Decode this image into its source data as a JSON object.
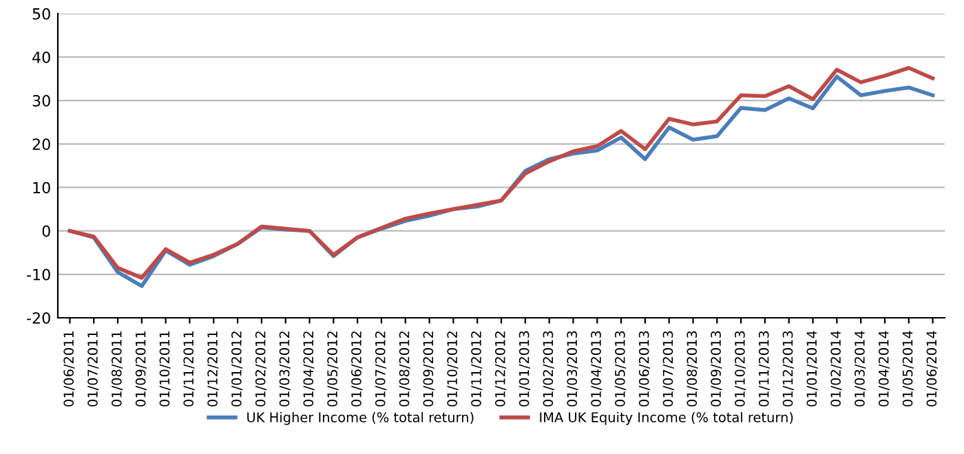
{
  "chart_data": {
    "type": "line",
    "categories": [
      "01/06/2011",
      "01/07/2011",
      "01/08/2011",
      "01/09/2011",
      "01/10/2011",
      "01/11/2011",
      "01/12/2011",
      "01/01/2012",
      "01/02/2012",
      "01/03/2012",
      "01/04/2012",
      "01/05/2012",
      "01/06/2012",
      "01/07/2012",
      "01/08/2012",
      "01/09/2012",
      "01/10/2012",
      "01/11/2012",
      "01/12/2012",
      "01/01/2013",
      "01/02/2013",
      "01/03/2013",
      "01/04/2013",
      "01/05/2013",
      "01/06/2013",
      "01/07/2013",
      "01/08/2013",
      "01/09/2013",
      "01/10/2013",
      "01/11/2013",
      "01/12/2013",
      "01/01/2014",
      "01/02/2014",
      "01/03/2014",
      "01/04/2014",
      "01/05/2014",
      "01/06/2014"
    ],
    "series": [
      {
        "name": "UK Higher Income (% total return)",
        "color": "#4a7ebb",
        "values": [
          0,
          -1.5,
          -9.5,
          -12.7,
          -4.5,
          -7.8,
          -5.8,
          -3,
          0.8,
          0.3,
          0,
          -5.8,
          -1.5,
          0.5,
          2.3,
          3.5,
          5,
          5.6,
          7,
          13.8,
          16.5,
          17.8,
          18.5,
          21.5,
          16.5,
          23.8,
          21,
          21.8,
          28.3,
          27.8,
          30.5,
          28.2,
          35.5,
          31.2,
          32.2,
          33,
          31.2
        ]
      },
      {
        "name": "IMA UK Equity Income (% total return)",
        "color": "#be4b48",
        "values": [
          0,
          -1.3,
          -8.5,
          -10.8,
          -4.2,
          -7.3,
          -5.5,
          -3,
          1,
          0.5,
          0,
          -5.5,
          -1.5,
          0.7,
          2.8,
          4,
          5,
          6,
          7,
          13.2,
          16,
          18.3,
          19.5,
          23,
          18.8,
          25.8,
          24.5,
          25.2,
          31.2,
          31,
          33.3,
          30.3,
          37.1,
          34.2,
          35.7,
          37.5,
          35.1
        ]
      }
    ],
    "ylim": [
      -20,
      50
    ],
    "yticks": [
      -20,
      -10,
      0,
      10,
      20,
      30,
      40,
      50
    ],
    "grid": "y",
    "legend": "bottom",
    "marker": "none",
    "line_style": "solid"
  }
}
